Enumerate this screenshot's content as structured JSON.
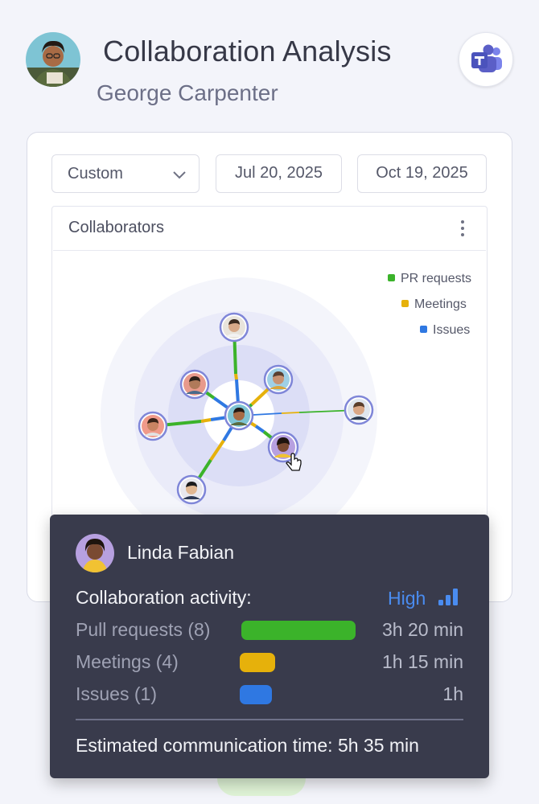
{
  "header": {
    "title": "Collaboration Analysis",
    "subtitle": "George Carpenter",
    "teams_icon": "microsoft-teams-icon"
  },
  "filters": {
    "range_select": "Custom",
    "start_date": "Jul 20, 2025",
    "end_date": "Oct 19, 2025"
  },
  "panel": {
    "title": "Collaborators",
    "legend": [
      {
        "label": "PR requests",
        "color": "#3bb32a"
      },
      {
        "label": "Meetings",
        "color": "#e6b10b"
      },
      {
        "label": "Issues",
        "color": "#2f78e2"
      }
    ]
  },
  "tooltip": {
    "name": "Linda Fabian",
    "activity_label": "Collaboration activity:",
    "activity_level": "High",
    "rows": [
      {
        "label": "Pull requests (8)",
        "time": "3h 20 min",
        "color": "#3bb32a"
      },
      {
        "label": "Meetings (4)",
        "time": "1h 15 min",
        "color": "#e6b10b"
      },
      {
        "label": "Issues (1)",
        "time": "1h",
        "color": "#2f78e2"
      }
    ],
    "total": "Estimated communication time: 5h 35 min"
  },
  "colors": {
    "pr": "#3bb32a",
    "meetings": "#e6b10b",
    "issues": "#2f78e2",
    "accent": "#4a8cf0",
    "tooltip_bg": "#393b4c"
  }
}
